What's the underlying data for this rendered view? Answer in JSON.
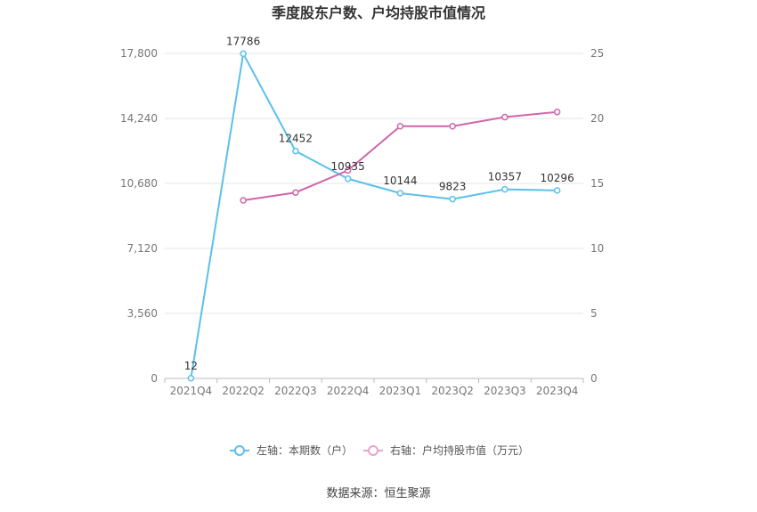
{
  "chart_data": {
    "type": "line",
    "title": "季度股东户数、户均持股市值情况",
    "categories": [
      "2021Q4",
      "2022Q2",
      "2022Q3",
      "2022Q4",
      "2023Q1",
      "2023Q2",
      "2023Q3",
      "2023Q4"
    ],
    "left_axis": {
      "ylim": [
        0,
        17800
      ],
      "ticks": [
        0,
        3560,
        7120,
        10680,
        14240,
        17800
      ],
      "tick_labels": [
        "0",
        "3,560",
        "7,120",
        "10,680",
        "14,240",
        "17,800"
      ]
    },
    "right_axis": {
      "ylim": [
        0,
        25
      ],
      "ticks": [
        0,
        5,
        10,
        15,
        20,
        25
      ],
      "tick_labels": [
        "0",
        "5",
        "10",
        "15",
        "20",
        "25"
      ]
    },
    "series": [
      {
        "name": "左轴：本期数（户）",
        "axis": "left",
        "color": "#5bc0eb",
        "values": [
          12,
          17786,
          12452,
          10935,
          10144,
          9823,
          10357,
          10296
        ],
        "labels": [
          "12",
          "17786",
          "12452",
          "10935",
          "10144",
          "9823",
          "10357",
          "10296"
        ]
      },
      {
        "name": "右轴：户均持股市值（万元）",
        "axis": "right",
        "color": "#d066aa",
        "legend_color": "#e8a3cf",
        "values": [
          null,
          13.7,
          14.3,
          16.0,
          19.4,
          19.4,
          20.1,
          20.5
        ]
      }
    ],
    "grid": true,
    "legend_position": "bottom",
    "source": "数据来源：恒生聚源"
  }
}
